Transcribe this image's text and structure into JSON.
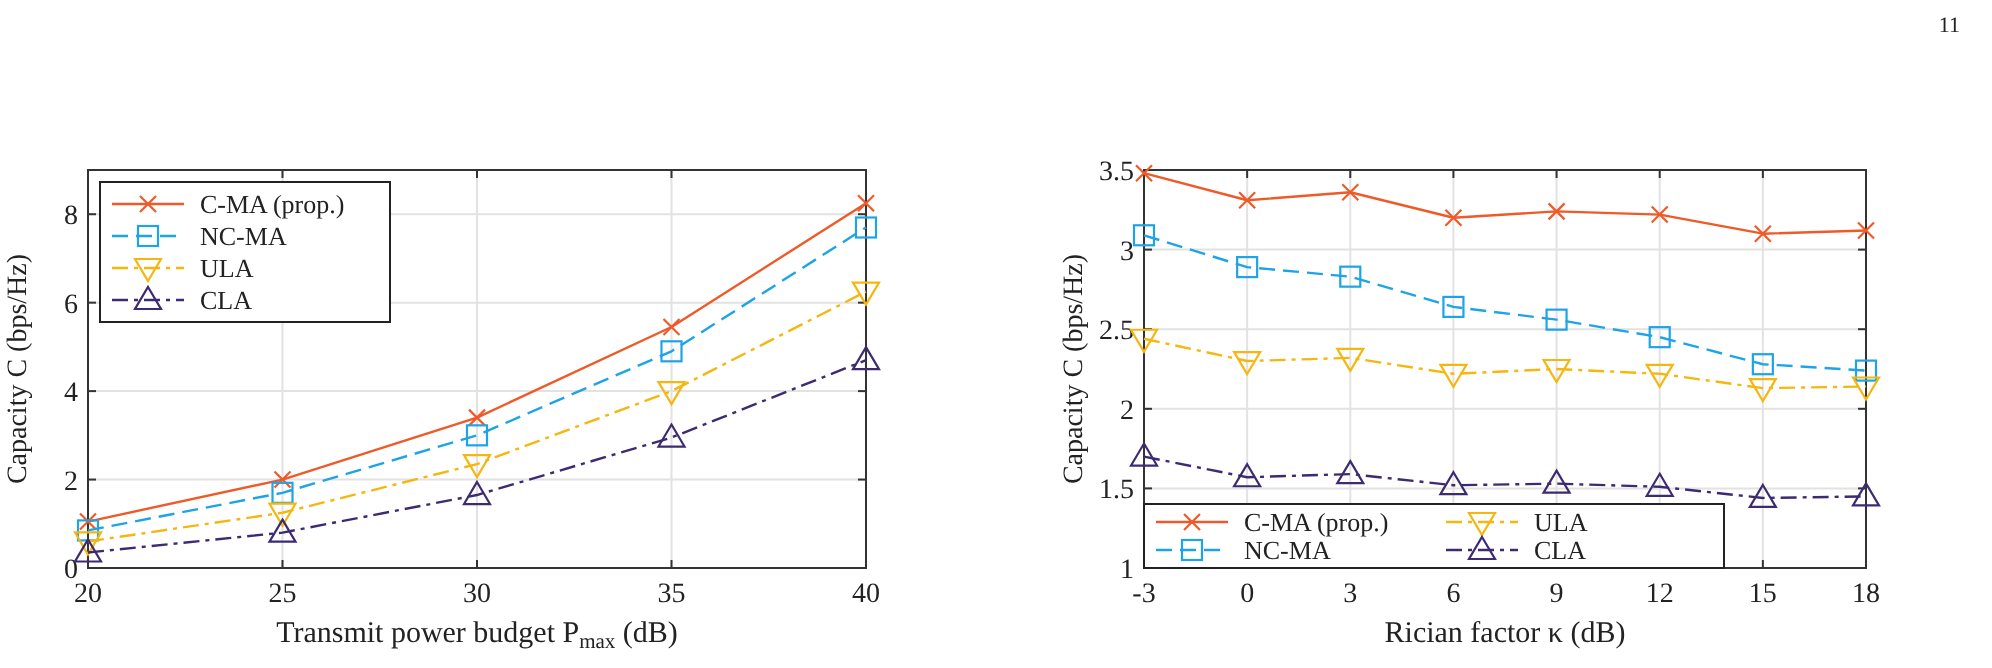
{
  "chart_data": [
    {
      "type": "line",
      "xlabel": "Transmit power budget P$_{max}$ (dB)",
      "ylabel": "Capacity C (bps/Hz)",
      "x": [
        20,
        25,
        30,
        35,
        40
      ],
      "xlim": [
        20,
        40
      ],
      "xticks": [
        20,
        25,
        30,
        35,
        40
      ],
      "ylim": [
        0,
        9
      ],
      "yticks": [
        0,
        2,
        4,
        6,
        8
      ],
      "grid": true,
      "legend": "top left",
      "series": [
        {
          "name": "C-MA (prop.)",
          "color": "#ee5a28",
          "marker": "cross",
          "line_style": "solid",
          "values": [
            1.05,
            2.0,
            3.4,
            5.45,
            8.25
          ]
        },
        {
          "name": "NC-MA",
          "color": "#1ea4e6",
          "marker": "square",
          "line_style": "dashed",
          "values": [
            0.85,
            1.7,
            3.0,
            4.9,
            7.7
          ]
        },
        {
          "name": "ULA",
          "color": "#f5b70f",
          "marker": "triangle-down",
          "line_style": "dashdot",
          "values": [
            0.6,
            1.25,
            2.35,
            4.0,
            6.25
          ]
        },
        {
          "name": "CLA",
          "color": "#3d2a70",
          "marker": "triangle",
          "line_style": "dashdot",
          "values": [
            0.35,
            0.8,
            1.65,
            2.95,
            4.7
          ]
        }
      ]
    },
    {
      "type": "line",
      "xlabel": "Rician factor κ (dB)",
      "ylabel": "Capacity C (bps/Hz)",
      "x": [
        -3,
        0,
        3,
        6,
        9,
        12,
        15,
        18
      ],
      "xlim": [
        -3,
        18
      ],
      "xticks": [
        -3,
        0,
        3,
        6,
        9,
        12,
        15,
        18
      ],
      "ylim": [
        1,
        3.5
      ],
      "yticks": [
        1,
        1.5,
        2,
        2.5,
        3,
        3.5
      ],
      "grid": true,
      "legend": "bottom left",
      "annotations": [
        "11"
      ],
      "series": [
        {
          "name": "C-MA (prop.)",
          "color": "#ee5a28",
          "marker": "cross",
          "line_style": "solid",
          "values": [
            3.48,
            3.31,
            3.36,
            3.2,
            3.24,
            3.22,
            3.1,
            3.12
          ]
        },
        {
          "name": "NC-MA",
          "color": "#1ea4e6",
          "marker": "square",
          "line_style": "dashed",
          "values": [
            3.09,
            2.89,
            2.83,
            2.64,
            2.56,
            2.45,
            2.28,
            2.24
          ]
        },
        {
          "name": "ULA",
          "color": "#f5b70f",
          "marker": "triangle-down",
          "line_style": "dashdot",
          "values": [
            2.44,
            2.3,
            2.32,
            2.22,
            2.25,
            2.22,
            2.13,
            2.14
          ]
        },
        {
          "name": "CLA",
          "color": "#3d2a70",
          "marker": "triangle",
          "line_style": "dashdot",
          "values": [
            1.7,
            1.57,
            1.59,
            1.52,
            1.53,
            1.51,
            1.44,
            1.45
          ]
        }
      ]
    }
  ]
}
